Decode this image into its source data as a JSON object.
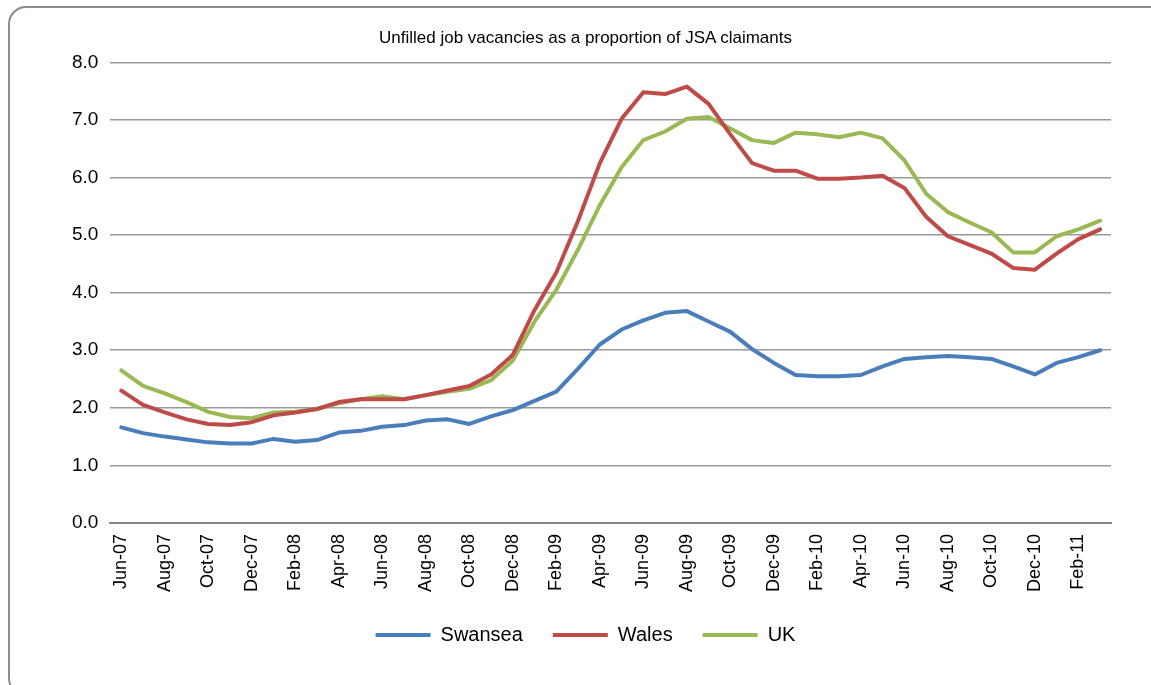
{
  "chart_data": {
    "type": "line",
    "title": "Unfilled job vacancies as a proportion of JSA claimants",
    "categories": [
      "Jun-07",
      null,
      "Aug-07",
      null,
      "Oct-07",
      null,
      "Dec-07",
      null,
      "Feb-08",
      null,
      "Apr-08",
      null,
      "Jun-08",
      null,
      "Aug-08",
      null,
      "Oct-08",
      null,
      "Dec-08",
      null,
      "Feb-09",
      null,
      "Apr-09",
      null,
      "Jun-09",
      null,
      "Aug-09",
      null,
      "Oct-09",
      null,
      "Dec-09",
      null,
      "Feb-10",
      null,
      "Apr-10",
      null,
      "Jun-10",
      null,
      "Aug-10",
      null,
      "Oct-10",
      null,
      "Dec-10",
      null,
      "Feb-11",
      null
    ],
    "series": [
      {
        "name": "Swansea",
        "color": "#4a7ebb",
        "values": [
          1.66,
          1.56,
          1.5,
          1.45,
          1.4,
          1.38,
          1.38,
          1.46,
          1.41,
          1.44,
          1.57,
          1.6,
          1.67,
          1.7,
          1.78,
          1.8,
          1.72,
          1.85,
          1.96,
          2.12,
          2.28,
          2.68,
          3.1,
          3.36,
          3.52,
          3.65,
          3.68,
          3.5,
          3.32,
          3.02,
          2.78,
          2.57,
          2.55,
          2.55,
          2.57,
          2.72,
          2.85,
          2.88,
          2.9,
          2.88,
          2.85,
          2.72,
          2.58,
          2.78,
          2.88,
          3.0
        ]
      },
      {
        "name": "Wales",
        "color": "#be4b48",
        "values": [
          2.3,
          2.05,
          1.92,
          1.8,
          1.72,
          1.7,
          1.75,
          1.87,
          1.92,
          1.98,
          2.1,
          2.15,
          2.15,
          2.15,
          2.22,
          2.3,
          2.38,
          2.58,
          2.92,
          3.7,
          4.35,
          5.25,
          6.25,
          7.02,
          7.48,
          7.45,
          7.58,
          7.28,
          6.75,
          6.25,
          6.12,
          6.12,
          5.98,
          5.98,
          6.0,
          6.03,
          5.82,
          5.32,
          4.98,
          4.83,
          4.68,
          4.43,
          4.4,
          4.68,
          4.93,
          5.1
        ]
      },
      {
        "name": "UK",
        "color": "#98b954",
        "values": [
          2.65,
          2.38,
          2.25,
          2.1,
          1.93,
          1.84,
          1.82,
          1.92,
          1.93,
          1.98,
          2.08,
          2.15,
          2.2,
          2.15,
          2.22,
          2.28,
          2.33,
          2.48,
          2.82,
          3.5,
          4.05,
          4.75,
          5.52,
          6.18,
          6.65,
          6.8,
          7.02,
          7.05,
          6.85,
          6.65,
          6.6,
          6.78,
          6.75,
          6.7,
          6.78,
          6.68,
          6.3,
          5.72,
          5.4,
          5.22,
          5.05,
          4.7,
          4.7,
          4.98,
          5.1,
          5.25
        ]
      }
    ],
    "ylim": [
      0,
      8
    ],
    "yticks": [
      {
        "value": 0,
        "label": "0.0"
      },
      {
        "value": 1,
        "label": "1.0"
      },
      {
        "value": 2,
        "label": "2.0"
      },
      {
        "value": 3,
        "label": "3.0"
      },
      {
        "value": 4,
        "label": "4.0"
      },
      {
        "value": 5,
        "label": "5.0"
      },
      {
        "value": 6,
        "label": "6.0"
      },
      {
        "value": 7,
        "label": "7.0"
      },
      {
        "value": 8,
        "label": "8.0"
      }
    ],
    "grid": "y",
    "legend": "bottom",
    "marker": "none",
    "line_style": "solid"
  }
}
